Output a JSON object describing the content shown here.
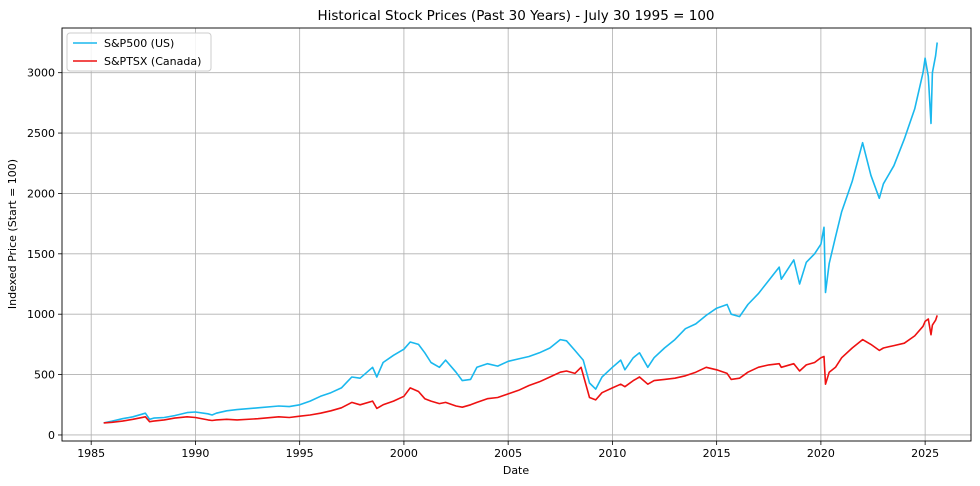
{
  "chart_data": {
    "type": "line",
    "title": "Historical Stock Prices (Past 30 Years) - July 30 1995 = 100",
    "xlabel": "Date",
    "ylabel": "Indexed Price (Start = 100)",
    "xlim": [
      1983.6,
      2027.2
    ],
    "ylim": [
      -50,
      3370
    ],
    "x_ticks": [
      1985,
      1990,
      1995,
      2000,
      2005,
      2010,
      2015,
      2020,
      2025
    ],
    "y_ticks": [
      0,
      500,
      1000,
      1500,
      2000,
      2500,
      3000
    ],
    "grid": true,
    "legend_position": "top-left",
    "series": [
      {
        "name": "S&P500 (US)",
        "color": "#1ab8ee",
        "x": [
          1985.6,
          1986.0,
          1986.5,
          1987.0,
          1987.6,
          1987.8,
          1988.0,
          1988.5,
          1989.0,
          1989.6,
          1990.0,
          1990.6,
          1990.8,
          1991.0,
          1991.5,
          1992.0,
          1993.0,
          1994.0,
          1994.5,
          1995.0,
          1995.5,
          1996.0,
          1996.5,
          1997.0,
          1997.5,
          1997.9,
          1998.5,
          1998.7,
          1999.0,
          1999.5,
          2000.0,
          2000.3,
          2000.7,
          2001.0,
          2001.3,
          2001.7,
          2002.0,
          2002.5,
          2002.8,
          2003.2,
          2003.5,
          2004.0,
          2004.5,
          2005.0,
          2005.5,
          2006.0,
          2006.5,
          2007.0,
          2007.5,
          2007.8,
          2008.2,
          2008.6,
          2008.9,
          2009.2,
          2009.5,
          2010.0,
          2010.4,
          2010.6,
          2011.0,
          2011.3,
          2011.7,
          2012.0,
          2012.5,
          2013.0,
          2013.5,
          2014.0,
          2014.5,
          2015.0,
          2015.5,
          2015.7,
          2016.1,
          2016.5,
          2017.0,
          2017.5,
          2018.0,
          2018.1,
          2018.7,
          2018.98,
          2019.3,
          2019.7,
          2020.0,
          2020.15,
          2020.22,
          2020.4,
          2020.7,
          2021.0,
          2021.5,
          2022.0,
          2022.4,
          2022.8,
          2023.0,
          2023.5,
          2024.0,
          2024.5,
          2024.9,
          2025.0,
          2025.15,
          2025.28,
          2025.35,
          2025.5,
          2025.58
        ],
        "values": [
          100,
          115,
          135,
          150,
          180,
          130,
          140,
          145,
          160,
          185,
          190,
          175,
          165,
          180,
          200,
          210,
          225,
          240,
          235,
          250,
          280,
          320,
          350,
          390,
          480,
          470,
          560,
          480,
          600,
          660,
          710,
          770,
          750,
          680,
          600,
          560,
          620,
          520,
          450,
          460,
          560,
          590,
          570,
          610,
          630,
          650,
          680,
          720,
          790,
          780,
          700,
          620,
          430,
          380,
          480,
          560,
          620,
          540,
          640,
          680,
          560,
          640,
          720,
          790,
          880,
          920,
          990,
          1050,
          1080,
          1000,
          980,
          1080,
          1170,
          1280,
          1390,
          1290,
          1450,
          1250,
          1430,
          1500,
          1580,
          1720,
          1180,
          1420,
          1640,
          1850,
          2100,
          2420,
          2150,
          1960,
          2080,
          2230,
          2450,
          2700,
          3000,
          3120,
          2970,
          2580,
          3000,
          3140,
          3250
        ]
      },
      {
        "name": "S&PTSX (Canada)",
        "color": "#ee1111",
        "x": [
          1985.6,
          1986.0,
          1986.5,
          1987.0,
          1987.6,
          1987.8,
          1988.0,
          1988.5,
          1989.0,
          1989.6,
          1990.0,
          1990.6,
          1990.8,
          1991.0,
          1991.5,
          1992.0,
          1993.0,
          1994.0,
          1994.5,
          1995.0,
          1995.5,
          1996.0,
          1996.5,
          1997.0,
          1997.5,
          1997.9,
          1998.5,
          1998.7,
          1999.0,
          1999.5,
          2000.0,
          2000.3,
          2000.7,
          2001.0,
          2001.3,
          2001.7,
          2002.0,
          2002.5,
          2002.8,
          2003.2,
          2003.5,
          2004.0,
          2004.5,
          2005.0,
          2005.5,
          2006.0,
          2006.5,
          2007.0,
          2007.5,
          2007.8,
          2008.2,
          2008.5,
          2008.9,
          2009.2,
          2009.5,
          2010.0,
          2010.4,
          2010.6,
          2011.0,
          2011.3,
          2011.7,
          2012.0,
          2012.5,
          2013.0,
          2013.5,
          2014.0,
          2014.5,
          2015.0,
          2015.5,
          2015.7,
          2016.1,
          2016.5,
          2017.0,
          2017.5,
          2018.0,
          2018.1,
          2018.7,
          2018.98,
          2019.3,
          2019.7,
          2020.0,
          2020.15,
          2020.22,
          2020.4,
          2020.7,
          2021.0,
          2021.5,
          2022.0,
          2022.4,
          2022.8,
          2023.0,
          2023.5,
          2024.0,
          2024.5,
          2024.9,
          2025.0,
          2025.15,
          2025.28,
          2025.35,
          2025.5,
          2025.58
        ],
        "values": [
          100,
          105,
          115,
          130,
          150,
          110,
          115,
          125,
          140,
          150,
          145,
          125,
          120,
          125,
          130,
          125,
          135,
          150,
          145,
          155,
          165,
          180,
          200,
          225,
          270,
          250,
          280,
          220,
          250,
          280,
          320,
          390,
          360,
          300,
          280,
          260,
          270,
          240,
          230,
          250,
          270,
          300,
          310,
          340,
          370,
          410,
          440,
          480,
          520,
          530,
          510,
          560,
          310,
          290,
          350,
          390,
          420,
          400,
          450,
          480,
          420,
          450,
          460,
          470,
          490,
          520,
          560,
          540,
          510,
          460,
          470,
          520,
          560,
          580,
          590,
          560,
          590,
          530,
          580,
          600,
          640,
          650,
          420,
          520,
          560,
          640,
          720,
          790,
          750,
          700,
          720,
          740,
          760,
          820,
          900,
          940,
          960,
          830,
          910,
          950,
          990
        ]
      }
    ]
  }
}
